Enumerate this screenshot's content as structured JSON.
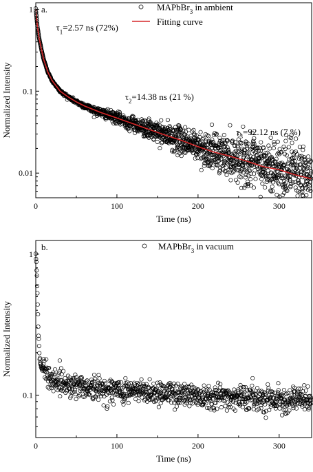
{
  "chart_data": [
    {
      "type": "scatter",
      "panel_label": "a.",
      "xlabel": "Time (ns)",
      "ylabel": "Normalized Intensity",
      "xlim": [
        0,
        340
      ],
      "ylim": [
        0.005,
        1.2
      ],
      "yscale": "log",
      "grid": false,
      "legend_position": "top-right",
      "xticks": [
        0,
        100,
        200,
        300
      ],
      "xtick_labels": [
        "0",
        "100",
        "200",
        "300"
      ],
      "yticks": [
        1,
        0.1,
        0.01
      ],
      "ytick_labels": [
        "1",
        "0.1",
        "0.01"
      ],
      "series": [
        {
          "name": "MAPbBr3 in ambient",
          "name_main": "MAPbBr",
          "name_sub": "3",
          "name_rest": " in ambient",
          "kind": "scatter",
          "marker": "open-circle",
          "color": "#000000",
          "x": [
            0,
            2,
            4,
            6,
            8,
            10,
            15,
            20,
            30,
            40,
            50,
            60,
            80,
            100,
            120,
            140,
            160,
            180,
            200,
            220,
            240,
            260,
            280,
            300,
            320,
            340
          ],
          "y": [
            1.0,
            0.62,
            0.45,
            0.36,
            0.29,
            0.24,
            0.17,
            0.135,
            0.1,
            0.085,
            0.074,
            0.066,
            0.055,
            0.047,
            0.04,
            0.034,
            0.029,
            0.025,
            0.021,
            0.018,
            0.016,
            0.014,
            0.012,
            0.011,
            0.0095,
            0.0085
          ]
        },
        {
          "name": "Fitting curve",
          "kind": "line",
          "color": "#d62728",
          "x": [
            0,
            2,
            4,
            6,
            8,
            10,
            15,
            20,
            30,
            40,
            50,
            60,
            80,
            100,
            120,
            140,
            160,
            180,
            200,
            220,
            240,
            260,
            280,
            300,
            320,
            340
          ],
          "y": [
            1.0,
            0.62,
            0.45,
            0.36,
            0.29,
            0.24,
            0.17,
            0.135,
            0.1,
            0.085,
            0.074,
            0.066,
            0.055,
            0.047,
            0.04,
            0.034,
            0.029,
            0.025,
            0.021,
            0.018,
            0.016,
            0.014,
            0.012,
            0.011,
            0.0095,
            0.0085
          ]
        }
      ],
      "annotations": [
        {
          "symbol": "τ",
          "sub": "1",
          "text": "=2.57 ns (72%)",
          "x": 25,
          "y": 0.55
        },
        {
          "symbol": "τ",
          "sub": "2",
          "text": "=14.38 ns (21 %)",
          "x": 110,
          "y": 0.078
        },
        {
          "symbol": "τ",
          "sub": "3",
          "text": "=92.12 ns (7 %)",
          "x": 247,
          "y": 0.029
        }
      ]
    },
    {
      "type": "scatter",
      "panel_label": "b.",
      "xlabel": "Time (ns)",
      "ylabel": "Normalized Intensity",
      "xlim": [
        0,
        340
      ],
      "ylim": [
        0.05,
        1.25
      ],
      "yscale": "log",
      "grid": false,
      "legend_position": "top-center",
      "xticks": [
        0,
        100,
        200,
        300
      ],
      "xtick_labels": [
        "0",
        "100",
        "200",
        "300"
      ],
      "yticks": [
        1,
        0.1
      ],
      "ytick_labels": [
        "1",
        "0.1"
      ],
      "series": [
        {
          "name": "MAPbBr3 in vacuum",
          "name_main": "MAPbBr",
          "name_sub": "3",
          "name_rest": " in vacuum",
          "kind": "scatter",
          "marker": "open-circle",
          "color": "#000000",
          "x": [
            0,
            1,
            2,
            3,
            4,
            5,
            6,
            8,
            10,
            15,
            20,
            30,
            40,
            60,
            80,
            100,
            150,
            200,
            250,
            300,
            340
          ],
          "y": [
            1.0,
            0.8,
            0.55,
            0.32,
            0.22,
            0.18,
            0.16,
            0.155,
            0.15,
            0.14,
            0.13,
            0.125,
            0.12,
            0.115,
            0.11,
            0.108,
            0.105,
            0.1,
            0.097,
            0.094,
            0.092
          ]
        }
      ]
    }
  ]
}
